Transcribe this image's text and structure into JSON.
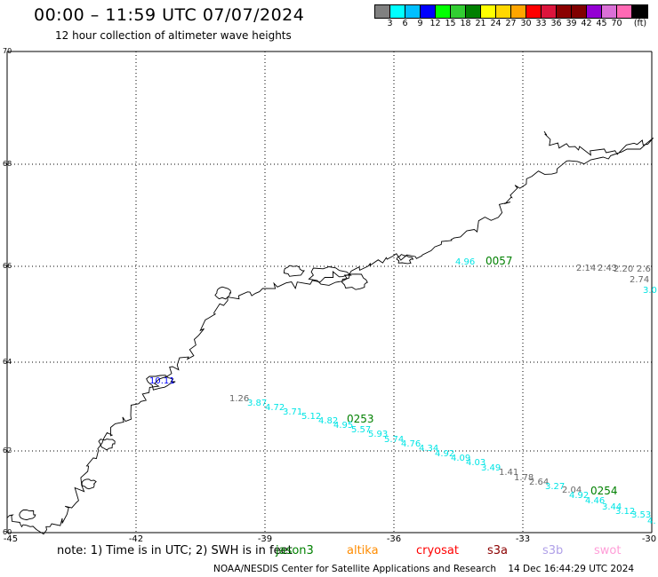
{
  "header": {
    "title": "00:00 – 11:59 UTC 07/07/2024",
    "subtitle": "12 hour collection of altimeter wave heights"
  },
  "colorbar": {
    "unit_label": "(ft)",
    "swatches": [
      "#808080",
      "#00ffff",
      "#00bfff",
      "#0000ff",
      "#00ff00",
      "#32cd32",
      "#008000",
      "#ffff00",
      "#ffd700",
      "#ffa500",
      "#ff0000",
      "#dc143c",
      "#8b0000",
      "#800000",
      "#9400d3",
      "#da70d6",
      "#ff69b4",
      "#000000"
    ],
    "labels": [
      "3",
      "6",
      "9",
      "12",
      "15",
      "18",
      "21",
      "24",
      "27",
      "30",
      "33",
      "36",
      "39",
      "42",
      "45",
      "70"
    ]
  },
  "map": {
    "lon_ticks": [
      "-45",
      "-42",
      "-39",
      "-36",
      "-33",
      "-30"
    ],
    "lat_ticks": [
      "70",
      "68",
      "66",
      "64",
      "62",
      "60"
    ],
    "wave_labels": [
      {
        "text": "4.96",
        "color": "#00e5e5"
      },
      {
        "text": "0057",
        "color": "#008000"
      },
      {
        "text": "2.14",
        "color": "#666666"
      },
      {
        "text": "2.43",
        "color": "#666666"
      },
      {
        "text": "2.20",
        "color": "#666666"
      },
      {
        "text": "2.6",
        "color": "#666666"
      },
      {
        "text": "2.74",
        "color": "#666666"
      },
      {
        "text": "3.0",
        "color": "#00e5e5"
      },
      {
        "text": "10.11",
        "color": "#0000ff"
      },
      {
        "text": "1.26",
        "color": "#666666"
      },
      {
        "text": "3.87",
        "color": "#00e5e5"
      },
      {
        "text": "4.72",
        "color": "#00e5e5"
      },
      {
        "text": "3.71",
        "color": "#00e5e5"
      },
      {
        "text": "5.12",
        "color": "#00e5e5"
      },
      {
        "text": "4.82",
        "color": "#00e5e5"
      },
      {
        "text": "0253",
        "color": "#008000"
      },
      {
        "text": "4.95",
        "color": "#00e5e5"
      },
      {
        "text": "5.57",
        "color": "#00e5e5"
      },
      {
        "text": "5.93",
        "color": "#00e5e5"
      },
      {
        "text": "5.74",
        "color": "#00e5e5"
      },
      {
        "text": "4.76",
        "color": "#00e5e5"
      },
      {
        "text": "4.34",
        "color": "#00e5e5"
      },
      {
        "text": "4.92",
        "color": "#00e5e5"
      },
      {
        "text": "4.09",
        "color": "#00e5e5"
      },
      {
        "text": "4.03",
        "color": "#00e5e5"
      },
      {
        "text": "3.49",
        "color": "#00e5e5"
      },
      {
        "text": "1.41",
        "color": "#666666"
      },
      {
        "text": "1.78",
        "color": "#666666"
      },
      {
        "text": "2.64",
        "color": "#666666"
      },
      {
        "text": "3.27",
        "color": "#00e5e5"
      },
      {
        "text": "2.04",
        "color": "#666666"
      },
      {
        "text": "4.92",
        "color": "#00e5e5"
      },
      {
        "text": "0254",
        "color": "#008000"
      },
      {
        "text": "4.46",
        "color": "#00e5e5"
      },
      {
        "text": "3.44",
        "color": "#00e5e5"
      },
      {
        "text": "3.12",
        "color": "#00e5e5"
      },
      {
        "text": "3.53",
        "color": "#00e5e5"
      },
      {
        "text": "4.",
        "color": "#00e5e5"
      }
    ]
  },
  "footer": {
    "note": "note: 1) Time is in UTC; 2) SWH is in feet",
    "satellites": [
      {
        "name": "jason3",
        "color": "#008000"
      },
      {
        "name": "altika",
        "color": "#ff8c00"
      },
      {
        "name": "cryosat",
        "color": "#ff0000"
      },
      {
        "name": "s3a",
        "color": "#8b0000"
      },
      {
        "name": "s3b",
        "color": "#b0a0e8"
      },
      {
        "name": "swot",
        "color": "#ff9ed8"
      }
    ],
    "credit": "NOAA/NESDIS Center for Satellite Applications and Research",
    "timestamp": "14 Dec 16:44:29 UTC 2024"
  }
}
